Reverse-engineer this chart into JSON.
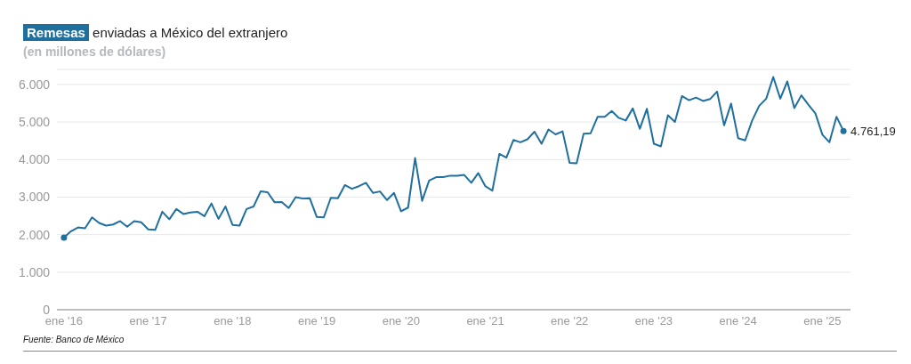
{
  "chart_data": {
    "type": "line",
    "title": "Remesas enviadas a México del extranjero",
    "subtitle": "(en millones de dólares)",
    "x": [
      "2016-01",
      "2016-02",
      "2016-03",
      "2016-04",
      "2016-05",
      "2016-06",
      "2016-07",
      "2016-08",
      "2016-09",
      "2016-10",
      "2016-11",
      "2016-12",
      "2017-01",
      "2017-02",
      "2017-03",
      "2017-04",
      "2017-05",
      "2017-06",
      "2017-07",
      "2017-08",
      "2017-09",
      "2017-10",
      "2017-11",
      "2017-12",
      "2018-01",
      "2018-02",
      "2018-03",
      "2018-04",
      "2018-05",
      "2018-06",
      "2018-07",
      "2018-08",
      "2018-09",
      "2018-10",
      "2018-11",
      "2018-12",
      "2019-01",
      "2019-02",
      "2019-03",
      "2019-04",
      "2019-05",
      "2019-06",
      "2019-07",
      "2019-08",
      "2019-09",
      "2019-10",
      "2019-11",
      "2019-12",
      "2020-01",
      "2020-02",
      "2020-03",
      "2020-04",
      "2020-05",
      "2020-06",
      "2020-07",
      "2020-08",
      "2020-09",
      "2020-10",
      "2020-11",
      "2020-12",
      "2021-01",
      "2021-02",
      "2021-03",
      "2021-04",
      "2021-05",
      "2021-06",
      "2021-07",
      "2021-08",
      "2021-09",
      "2021-10",
      "2021-11",
      "2021-12",
      "2022-01",
      "2022-02",
      "2022-03",
      "2022-04",
      "2022-05",
      "2022-06",
      "2022-07",
      "2022-08",
      "2022-09",
      "2022-10",
      "2022-11",
      "2022-12",
      "2023-01",
      "2023-02",
      "2023-03",
      "2023-04",
      "2023-05",
      "2023-06",
      "2023-07",
      "2023-08",
      "2023-09",
      "2023-10",
      "2023-11",
      "2023-12",
      "2024-01",
      "2024-02",
      "2024-03",
      "2024-04",
      "2024-05",
      "2024-06",
      "2024-07",
      "2024-08",
      "2024-09",
      "2024-10",
      "2024-11",
      "2024-12",
      "2025-01",
      "2025-02",
      "2025-03",
      "2025-04"
    ],
    "series": [
      {
        "color": "#1f6f9f",
        "values": [
          1920,
          2090,
          2190,
          2170,
          2460,
          2310,
          2240,
          2270,
          2360,
          2210,
          2360,
          2330,
          2140,
          2130,
          2610,
          2410,
          2680,
          2550,
          2590,
          2610,
          2490,
          2830,
          2420,
          2750,
          2260,
          2240,
          2680,
          2750,
          3150,
          3130,
          2860,
          2870,
          2710,
          3000,
          2960,
          2970,
          2470,
          2460,
          2980,
          2970,
          3320,
          3220,
          3290,
          3380,
          3110,
          3150,
          2920,
          3110,
          2620,
          2720,
          4040,
          2900,
          3440,
          3530,
          3530,
          3570,
          3570,
          3590,
          3380,
          3640,
          3290,
          3170,
          4150,
          4050,
          4520,
          4460,
          4540,
          4740,
          4420,
          4800,
          4670,
          4750,
          3910,
          3900,
          4690,
          4700,
          5140,
          5140,
          5290,
          5110,
          5040,
          5360,
          4820,
          5350,
          4420,
          4350,
          5180,
          5000,
          5690,
          5580,
          5650,
          5560,
          5610,
          5810,
          4910,
          5490,
          4570,
          4510,
          5040,
          5430,
          5620,
          6200,
          5620,
          6080,
          5370,
          5710,
          5460,
          5230,
          4660,
          4460,
          5140,
          4761.19
        ],
        "value_labels": [
          null,
          null,
          null,
          null,
          null,
          null,
          null,
          null,
          null,
          null,
          null,
          null,
          null,
          null,
          null,
          null,
          null,
          null,
          null,
          null,
          null,
          null,
          null,
          null,
          null,
          null,
          null,
          null,
          null,
          null,
          null,
          null,
          null,
          null,
          null,
          null,
          null,
          null,
          null,
          null,
          null,
          null,
          null,
          null,
          null,
          null,
          null,
          null,
          null,
          null,
          null,
          null,
          null,
          null,
          null,
          null,
          null,
          null,
          null,
          null,
          null,
          null,
          null,
          null,
          null,
          null,
          null,
          null,
          null,
          null,
          null,
          null,
          null,
          null,
          null,
          null,
          null,
          null,
          null,
          null,
          null,
          null,
          null,
          null,
          null,
          null,
          null,
          null,
          null,
          null,
          null,
          null,
          null,
          null,
          null,
          null,
          null,
          null,
          null,
          null,
          null,
          null,
          null,
          null,
          null,
          null,
          null,
          null,
          null,
          null,
          null,
          "4.761,19"
        ]
      }
    ],
    "xlim": [
      "2015-12",
      "2025-05"
    ],
    "xticks": [
      {
        "value": "2016-01",
        "label": "ene '16"
      },
      {
        "value": "2017-01",
        "label": "ene '17"
      },
      {
        "value": "2018-01",
        "label": "ene '18"
      },
      {
        "value": "2019-01",
        "label": "ene '19"
      },
      {
        "value": "2020-01",
        "label": "ene '20"
      },
      {
        "value": "2021-01",
        "label": "ene '21"
      },
      {
        "value": "2022-01",
        "label": "ene '22"
      },
      {
        "value": "2023-01",
        "label": "ene '23"
      },
      {
        "value": "2024-01",
        "label": "ene '24"
      },
      {
        "value": "2025-01",
        "label": "ene '25"
      }
    ],
    "ylim": [
      0,
      6400
    ],
    "yticks": [
      0,
      {
        "value": 1000,
        "label": "1.000"
      },
      {
        "value": 2000,
        "label": "2.000"
      },
      {
        "value": 3000,
        "label": "3.000"
      },
      {
        "value": 4000,
        "label": "4.000"
      },
      {
        "value": 5000,
        "label": "5.000"
      },
      {
        "value": 6000,
        "label": "6.000"
      }
    ],
    "grid": "y",
    "legend": false,
    "annotations": [
      "Fuente: Banco de México"
    ]
  }
}
